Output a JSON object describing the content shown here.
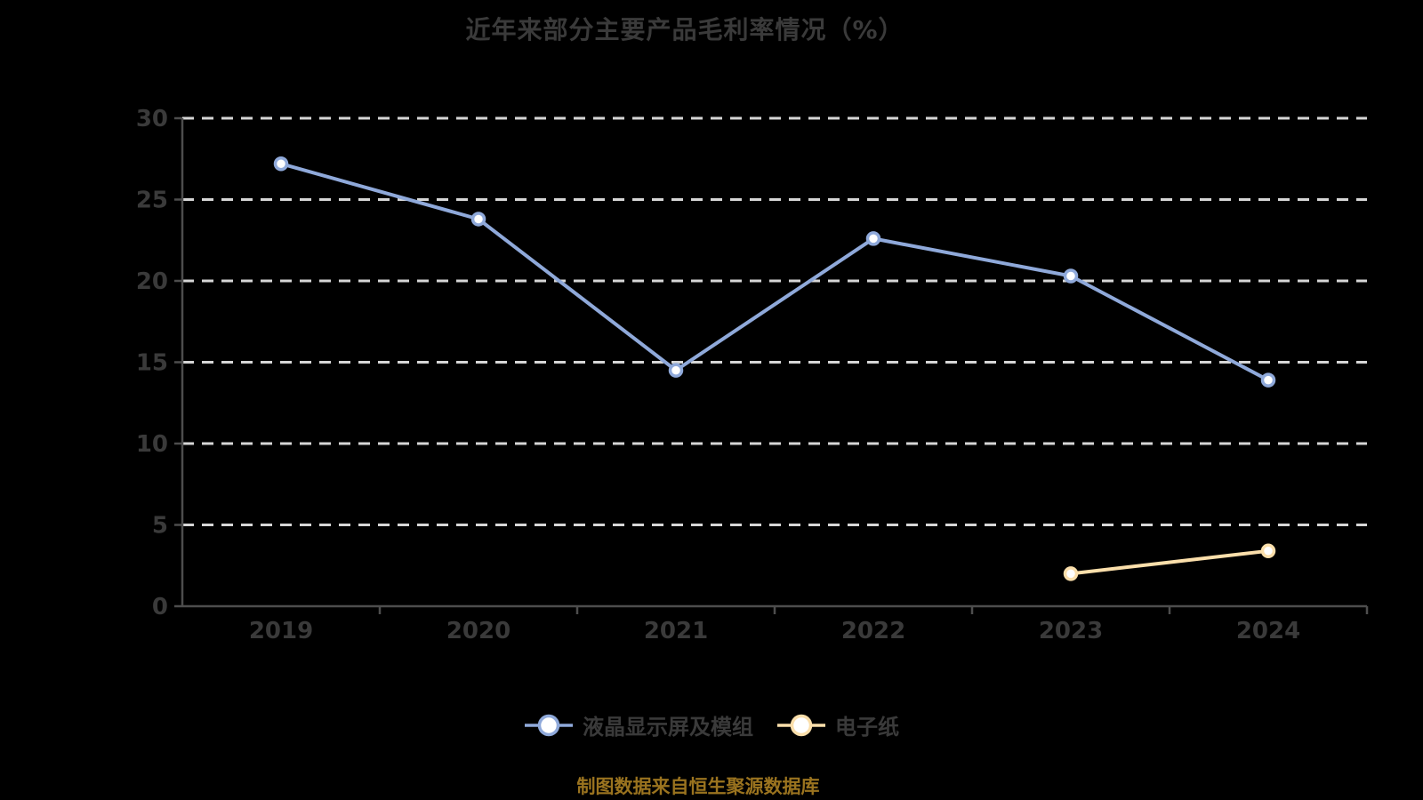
{
  "page": {
    "background": "#000000"
  },
  "title": "近年来部分主要产品毛利率情况（%）",
  "source_note": "制图数据来自恒生聚源数据库",
  "colors": {
    "title_text": "#3A3A3A",
    "tick_label": "#3A3A3A",
    "legend_text": "#3A3A3A",
    "axis_line": "#4D4D4D",
    "gridline": "#D6D6D6",
    "source_text": "#9A731F",
    "marker_fill": "#FFFFFF"
  },
  "chart_data": {
    "type": "line",
    "title": "近年来部分主要产品毛利率情况（%）",
    "categories": [
      "2019",
      "2020",
      "2021",
      "2022",
      "2023",
      "2024"
    ],
    "series": [
      {
        "name": "液晶显示屏及模组",
        "color": "#8FA9DA",
        "values": [
          27.2,
          23.8,
          14.5,
          22.6,
          20.3,
          13.9
        ]
      },
      {
        "name": "电子纸",
        "color": "#FBDFAB",
        "values": [
          null,
          null,
          null,
          null,
          2.0,
          3.4
        ]
      }
    ],
    "ylim": [
      0,
      30
    ],
    "yticks": [
      0,
      5,
      10,
      15,
      20,
      25,
      30
    ],
    "xlabel": "",
    "ylabel": "",
    "grid": "horizontal-dashed",
    "legend_position": "bottom"
  }
}
